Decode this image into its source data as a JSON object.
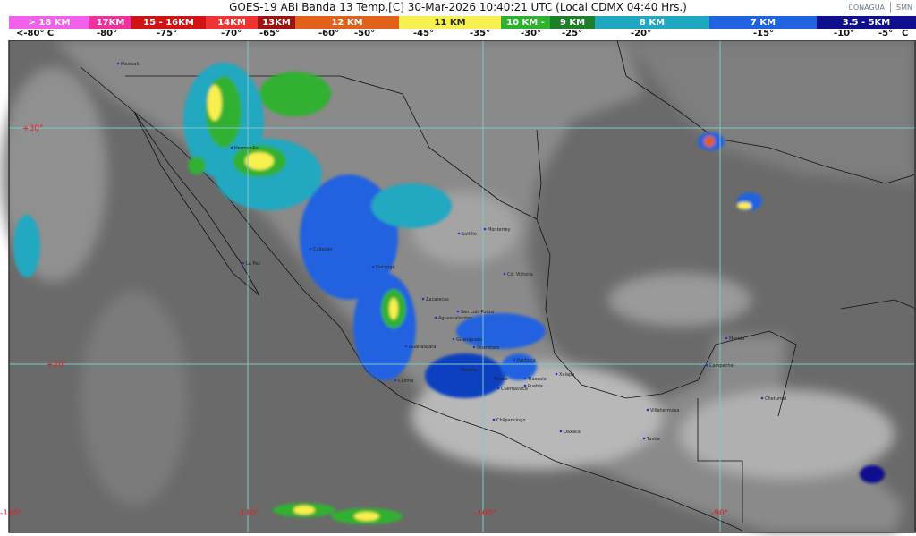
{
  "header": {
    "title": "GOES-19 ABI Banda 13 Temp.[C] 30-Mar-2026 10:40:21 UTC (Local CDMX  04:40 Hrs.)",
    "logos": [
      "CONAGUA",
      "SMN"
    ]
  },
  "legend": [
    {
      "label": "> 18 KM",
      "color": "#f060e8"
    },
    {
      "label": "17KM",
      "color": "#f0309c"
    },
    {
      "label": "15 - 16KM",
      "color": "#d01414"
    },
    {
      "label": "14KM",
      "color": "#f03434"
    },
    {
      "label": "13KM",
      "color": "#a01212"
    },
    {
      "label": "12 KM",
      "color": "#e0601c"
    },
    {
      "label": "11 KM",
      "color": "#f8f050"
    },
    {
      "label": "10 KM -",
      "color": "#30b030"
    },
    {
      "label": "9 KM",
      "color": "#1e7e2a"
    },
    {
      "label": "8 KM",
      "color": "#20a8c0"
    },
    {
      "label": "7 KM",
      "color": "#2062e0"
    },
    {
      "label": "3.5 - 5KM",
      "color": "#0e0e8e"
    }
  ],
  "temperatures": [
    "<-80° C",
    "-80°",
    "-75°",
    "-70°",
    "-65°",
    "-60°",
    "-50°",
    "-45°",
    "-35°",
    "-30°",
    "-25°",
    "-20°",
    "-15°",
    "-10°",
    "-5°",
    "C"
  ],
  "grid": {
    "latitudes": [
      "+30°",
      "+20°"
    ],
    "longitudes": [
      "-120°",
      "-110°",
      "-100°",
      "-90°"
    ],
    "grid_color": "#7ec8c8"
  },
  "cities": [
    "Mexicali",
    "Hermosillo",
    "Culiacán",
    "La Paz",
    "Durango",
    "Saltillo",
    "Monterrey",
    "Cd. Victoria",
    "Zacatecas",
    "San Luis Potosí",
    "Aguascalientes",
    "Guanajuato",
    "Querétaro",
    "Guadalajara",
    "Morelia",
    "Colima",
    "Pachuca",
    "Toluca",
    "Tlaxcala",
    "Puebla",
    "Cuernavaca",
    "Xalapa",
    "Chilpancingo",
    "Oaxaca",
    "Villahermosa",
    "Tuxtla",
    "Campeche",
    "Mérida",
    "Chetumal"
  ]
}
